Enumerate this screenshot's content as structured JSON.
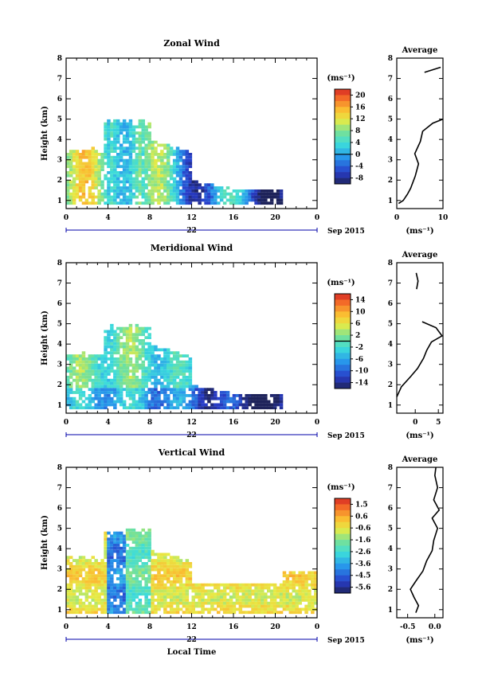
{
  "chart_data": [
    {
      "type": "heatmap",
      "title": "Zonal Wind",
      "ylabel": "Height (km)",
      "x_ticks": [
        "0",
        "4",
        "8",
        "12",
        "16",
        "20",
        "0"
      ],
      "xlim": [
        0,
        24
      ],
      "ylim": [
        0.6,
        8
      ],
      "y_ticks": [
        "1",
        "2",
        "3",
        "4",
        "5",
        "6",
        "7",
        "8"
      ],
      "date_center": "22",
      "date_right": "Sep 2015",
      "colorbar": {
        "unit": "(ms⁻¹)",
        "ticks": [
          "20",
          "16",
          "12",
          "8",
          "4",
          "0",
          "-4",
          "-8"
        ],
        "min": -10,
        "max": 22,
        "zero_line": 0
      },
      "average": {
        "title": "Average",
        "xlabel": "(ms⁻¹)",
        "x_ticks": [
          "0",
          "10"
        ],
        "xlim": [
          0,
          10
        ],
        "profile": [
          [
            0.4,
            0.85
          ],
          [
            1.4,
            1.0
          ],
          [
            2.3,
            1.3
          ],
          [
            3.0,
            1.6
          ],
          [
            4.0,
            2.2
          ],
          [
            4.7,
            2.8
          ],
          [
            3.9,
            3.3
          ],
          [
            5.1,
            3.9
          ],
          [
            5.6,
            4.4
          ],
          [
            7.8,
            4.8
          ],
          [
            10.0,
            5.0
          ]
        ],
        "profile_top": [
          [
            6.0,
            7.3
          ],
          [
            9.5,
            7.55
          ]
        ]
      }
    },
    {
      "type": "heatmap",
      "title": "Meridional Wind",
      "ylabel": "Height (km)",
      "x_ticks": [
        "0",
        "4",
        "8",
        "12",
        "16",
        "20",
        "0"
      ],
      "xlim": [
        0,
        24
      ],
      "ylim": [
        0.6,
        8
      ],
      "y_ticks": [
        "1",
        "2",
        "3",
        "4",
        "5",
        "6",
        "7",
        "8"
      ],
      "date_center": "22",
      "date_right": "Sep 2015",
      "colorbar": {
        "unit": "(ms⁻¹)",
        "ticks": [
          "14",
          "10",
          "6",
          "2",
          "-2",
          "-6",
          "-10",
          "-14"
        ],
        "min": -16,
        "max": 16,
        "zero_line": 0
      },
      "average": {
        "title": "Average",
        "xlabel": "(ms⁻¹)",
        "x_ticks": [
          "0",
          "5"
        ],
        "xlim": [
          -4,
          6
        ],
        "profile": [
          [
            -4.0,
            1.4
          ],
          [
            -3.0,
            1.9
          ],
          [
            -1.0,
            2.4
          ],
          [
            0.5,
            2.8
          ],
          [
            1.8,
            3.3
          ],
          [
            2.5,
            3.7
          ],
          [
            3.5,
            4.1
          ],
          [
            5.8,
            4.4
          ],
          [
            4.5,
            4.8
          ],
          [
            1.5,
            5.1
          ]
        ],
        "profile_top": [
          [
            0.3,
            6.7
          ],
          [
            0.6,
            7.1
          ],
          [
            0.2,
            7.5
          ]
        ]
      }
    },
    {
      "type": "heatmap",
      "title": "Vertical Wind",
      "ylabel": "Height (km)",
      "xlabel": "Local Time",
      "x_ticks": [
        "0",
        "4",
        "8",
        "12",
        "16",
        "20",
        "0"
      ],
      "xlim": [
        0,
        24
      ],
      "ylim": [
        0.6,
        8
      ],
      "y_ticks": [
        "1",
        "2",
        "3",
        "4",
        "5",
        "6",
        "7",
        "8"
      ],
      "date_center": "22",
      "date_right": "Sep 2015",
      "colorbar": {
        "unit": "(ms⁻¹)",
        "ticks": [
          "1.5",
          "0.6",
          "-0.6",
          "-1.6",
          "-2.6",
          "-3.6",
          "-4.5",
          "-5.6"
        ],
        "min": -6.2,
        "max": 2.0,
        "zero_line": null
      },
      "average": {
        "title": "Average",
        "xlabel": "(ms⁻¹)",
        "x_ticks": [
          "-0.5",
          "0.0"
        ],
        "xlim": [
          -0.7,
          0.15
        ],
        "profile": [
          [
            -0.35,
            0.85
          ],
          [
            -0.3,
            1.2
          ],
          [
            -0.38,
            1.6
          ],
          [
            -0.45,
            2.0
          ],
          [
            -0.35,
            2.4
          ],
          [
            -0.22,
            2.9
          ],
          [
            -0.15,
            3.4
          ],
          [
            -0.05,
            3.9
          ],
          [
            -0.02,
            4.4
          ],
          [
            0.05,
            5.0
          ],
          [
            -0.05,
            5.5
          ],
          [
            0.08,
            5.9
          ],
          [
            -0.02,
            6.4
          ],
          [
            0.05,
            7.0
          ],
          [
            0.0,
            7.6
          ],
          [
            0.02,
            8.0
          ]
        ],
        "profile_top": []
      }
    }
  ]
}
